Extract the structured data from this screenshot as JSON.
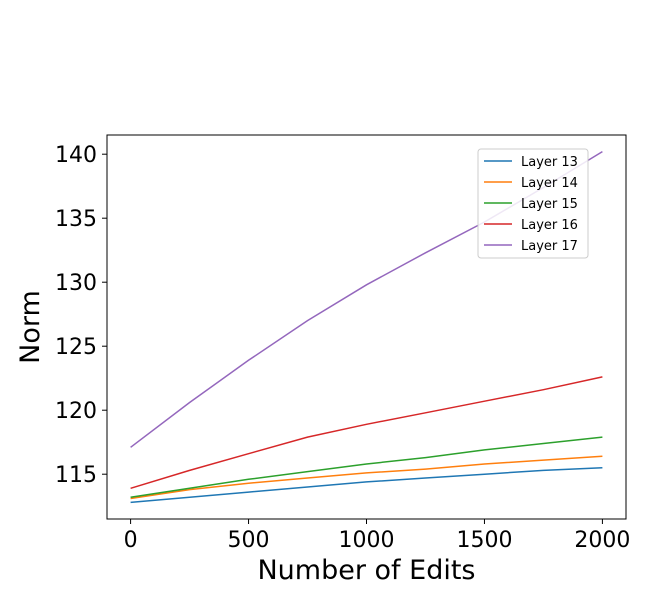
{
  "chart_data": {
    "type": "line",
    "title": "",
    "xlabel": "Number of Edits",
    "ylabel": "Norm",
    "xlim": [
      -100,
      2100
    ],
    "ylim": [
      111.5,
      141.5
    ],
    "xticks": [
      0,
      500,
      1000,
      1500,
      2000
    ],
    "yticks": [
      115,
      120,
      125,
      130,
      135,
      140
    ],
    "grid": false,
    "legend_position": "top-right",
    "series": [
      {
        "name": "Layer 13",
        "color": "#1f77b4",
        "x": [
          0,
          250,
          500,
          750,
          1000,
          1250,
          1500,
          1750,
          2000
        ],
        "y": [
          112.8,
          113.2,
          113.6,
          114.0,
          114.4,
          114.7,
          115.0,
          115.3,
          115.5
        ]
      },
      {
        "name": "Layer 14",
        "color": "#ff7f0e",
        "x": [
          0,
          250,
          500,
          750,
          1000,
          1250,
          1500,
          1750,
          2000
        ],
        "y": [
          113.1,
          113.8,
          114.3,
          114.7,
          115.1,
          115.4,
          115.8,
          116.1,
          116.4
        ]
      },
      {
        "name": "Layer 15",
        "color": "#2ca02c",
        "x": [
          0,
          250,
          500,
          750,
          1000,
          1250,
          1500,
          1750,
          2000
        ],
        "y": [
          113.2,
          113.9,
          114.6,
          115.2,
          115.8,
          116.3,
          116.9,
          117.4,
          117.9
        ]
      },
      {
        "name": "Layer 16",
        "color": "#d62728",
        "x": [
          0,
          250,
          500,
          750,
          1000,
          1250,
          1500,
          1750,
          2000
        ],
        "y": [
          113.9,
          115.3,
          116.6,
          117.9,
          118.9,
          119.8,
          120.7,
          121.6,
          122.6
        ]
      },
      {
        "name": "Layer 17",
        "color": "#9467bd",
        "x": [
          0,
          250,
          500,
          750,
          1000,
          1250,
          1500,
          1750,
          2000
        ],
        "y": [
          117.1,
          120.6,
          123.9,
          127.0,
          129.8,
          132.3,
          134.7,
          137.4,
          140.2
        ]
      }
    ]
  }
}
